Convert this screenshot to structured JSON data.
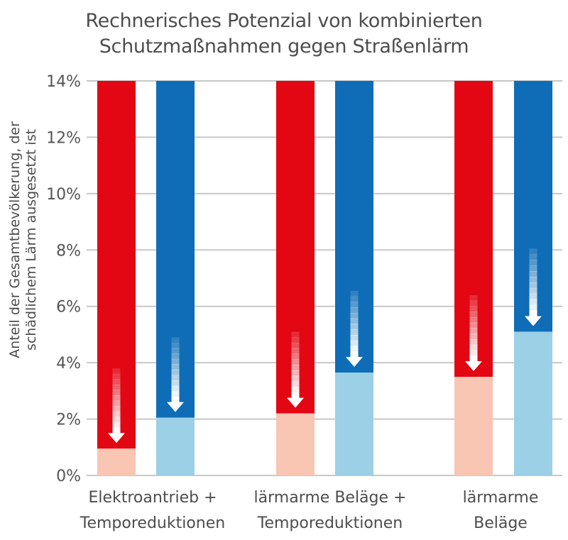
{
  "title_lines": [
    "Rechnerisches Potenzial von kombinierten",
    "Schutzmaßnahmen gegen Straßenlärm"
  ],
  "ylabel_lines": [
    "Anteil der Gesamtbevölkerung, der",
    "schädlichem Lärm ausgesetzt ist"
  ],
  "categories": [
    [
      "Elektroantrieb +",
      "Temporeduktionen"
    ],
    [
      "lärmarme Beläge +",
      "Temporeduktionen"
    ],
    [
      "lärmarme",
      "Beläge"
    ]
  ],
  "yticks": [
    "0%",
    "2%",
    "4%",
    "6%",
    "8%",
    "10%",
    "12%",
    "14%"
  ],
  "colors": {
    "red_dark": "#e30613",
    "red_light": "#f8c6b2",
    "blue_dark": "#0e6db6",
    "blue_light": "#9bd0e6",
    "grid": "#c8c8c8"
  },
  "chart_data": {
    "type": "bar",
    "ylim": [
      0,
      14
    ],
    "y_unit": "%",
    "categories": [
      "Elektroantrieb + Temporeduktionen",
      "lärmarme Beläge + Temporeduktionen",
      "lärmarme Beläge"
    ],
    "series": [
      {
        "color": "red",
        "baseline": 14,
        "values": [
          0.95,
          2.2,
          3.5
        ],
        "arrow_top": [
          3.8,
          5.1,
          6.4
        ]
      },
      {
        "color": "blue",
        "baseline": 14,
        "values": [
          2.05,
          3.65,
          5.1
        ],
        "arrow_top": [
          4.9,
          6.55,
          8.05
        ]
      }
    ],
    "grid": true
  }
}
